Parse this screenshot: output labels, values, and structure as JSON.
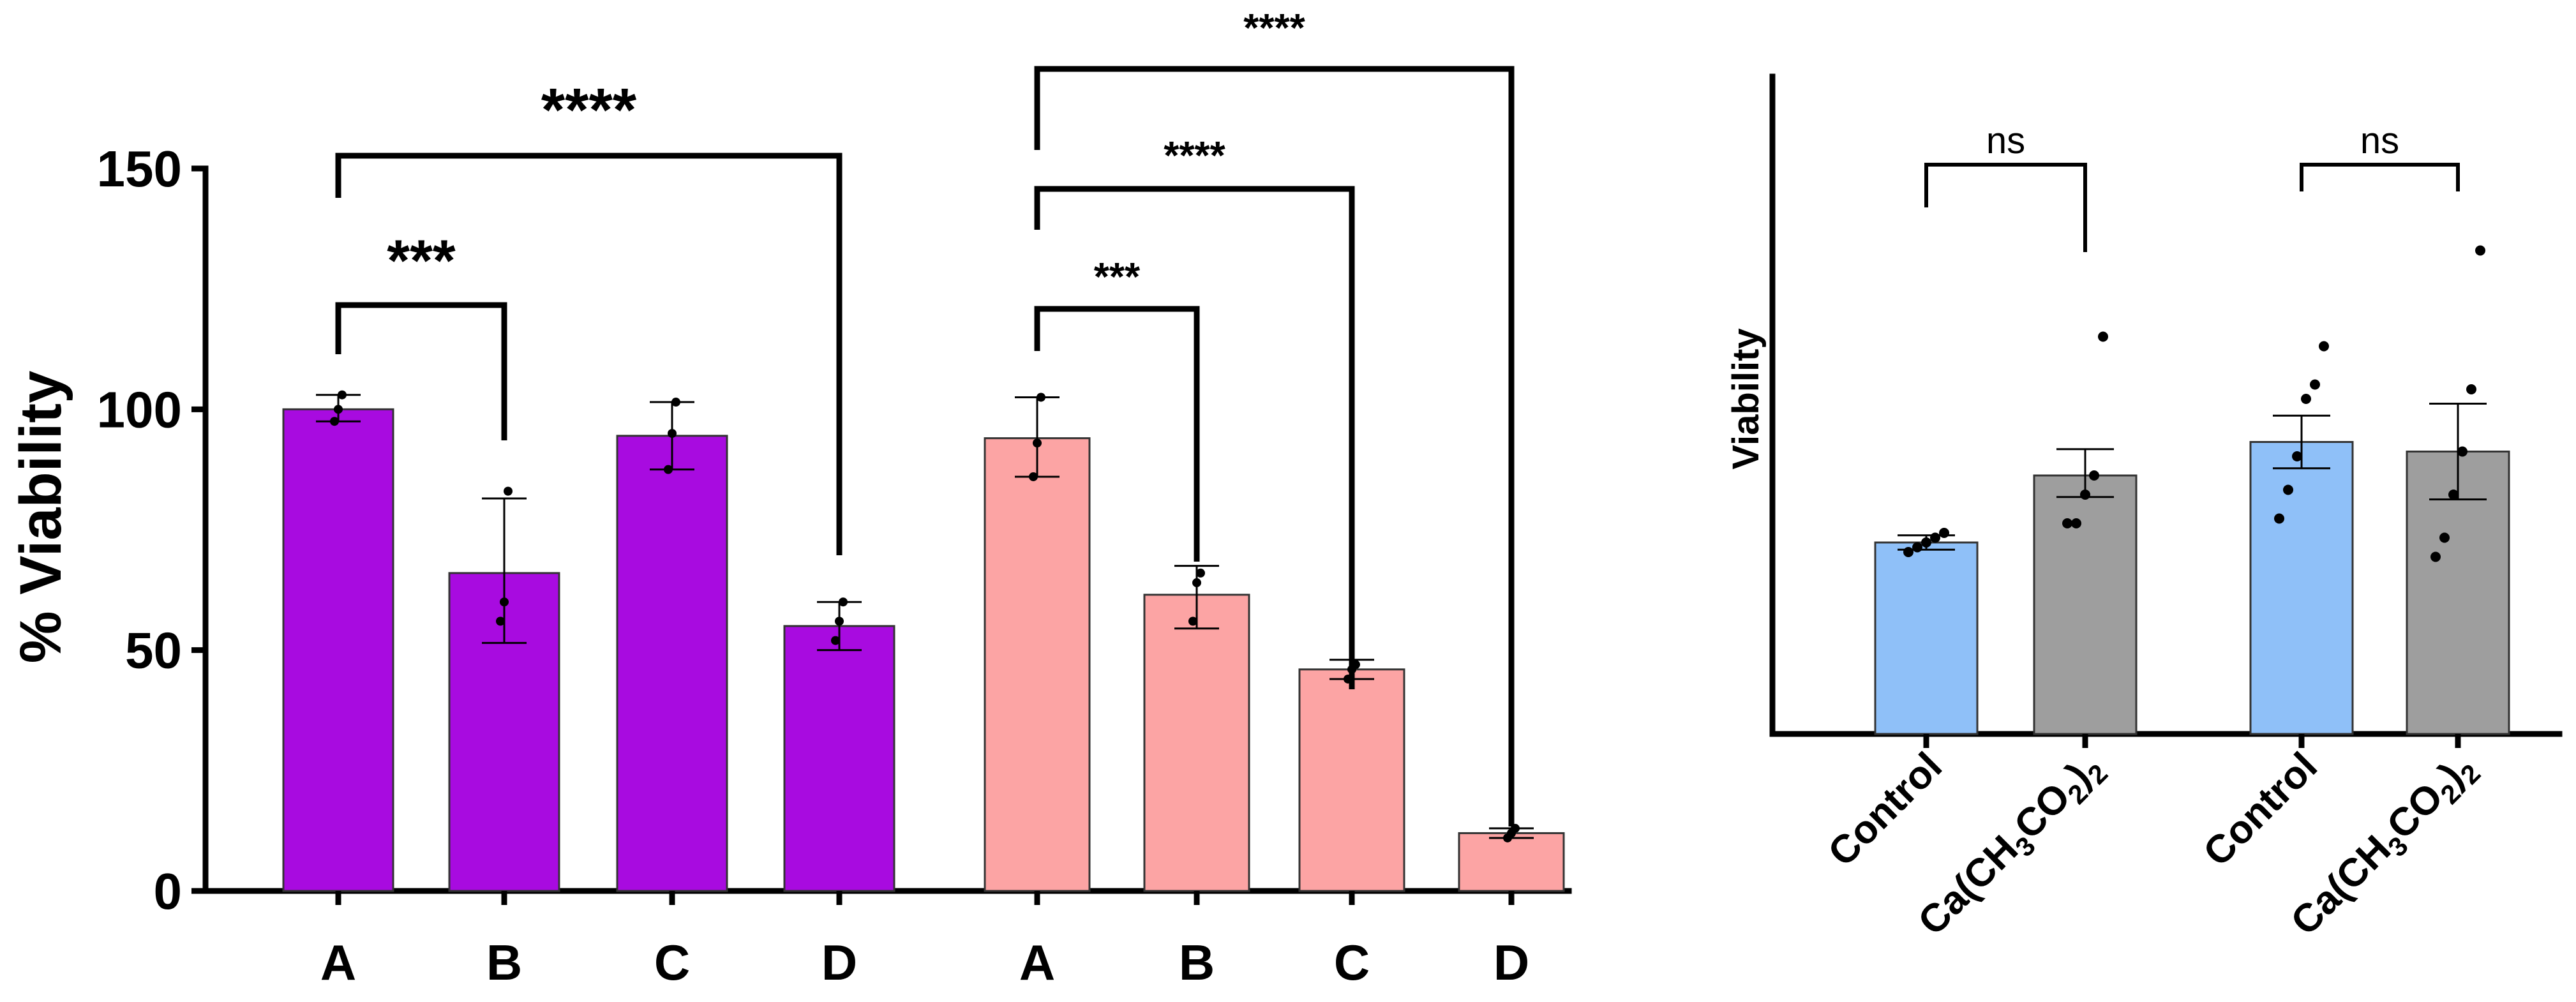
{
  "chart_data": [
    {
      "type": "bar",
      "title": "",
      "xlabel": "",
      "ylabel": "% Viability",
      "ylim": [
        0,
        150
      ],
      "yticks": [
        "0",
        "50",
        "100",
        "150"
      ],
      "grid": false,
      "groups": [
        {
          "name": "group-1",
          "color": "#a80be0",
          "categories": [
            "A",
            "B",
            "C",
            "D"
          ],
          "values": [
            100,
            66,
            94.5,
            55
          ],
          "errors": [
            [
              97.5,
              103
            ],
            [
              51.5,
              81.5
            ],
            [
              87.5,
              101.5
            ],
            [
              50,
              60
            ]
          ],
          "points": [
            [
              97.5,
              100,
              103
            ],
            [
              56,
              60,
              83
            ],
            [
              87.5,
              95,
              101.5
            ],
            [
              52,
              56,
              60
            ]
          ]
        },
        {
          "name": "group-2",
          "color": "#fca4a4",
          "categories": [
            "A",
            "B",
            "C",
            "D"
          ],
          "values": [
            94,
            61.5,
            46,
            12
          ],
          "errors": [
            [
              86,
              102.5
            ],
            [
              54.5,
              67.5
            ],
            [
              44,
              48
            ],
            [
              11,
              13
            ]
          ],
          "points": [
            [
              86,
              93,
              102.5
            ],
            [
              56,
              64,
              66
            ],
            [
              44,
              46,
              47
            ],
            [
              11,
              12,
              13
            ]
          ]
        }
      ],
      "comparisons": [
        {
          "from": "group-1.A",
          "to": "group-1.D",
          "label": "****"
        },
        {
          "from": "group-1.A",
          "to": "group-1.B",
          "label": "***"
        },
        {
          "from": "group-2.A",
          "to": "group-2.D",
          "label": "****"
        },
        {
          "from": "group-2.A",
          "to": "group-2.C",
          "label": "****"
        },
        {
          "from": "group-2.A",
          "to": "group-2.B",
          "label": "***"
        }
      ]
    },
    {
      "type": "bar",
      "title": "",
      "xlabel": "",
      "ylabel": "Viability",
      "ylim": [
        0,
        1.2
      ],
      "yticks": [],
      "grid": false,
      "groups": [
        {
          "name": "pair-1",
          "categories": [
            "Control",
            "Ca(CH3CO2)2"
          ],
          "colors": [
            "#8fc0f8",
            "#9e9e9e"
          ],
          "values": [
            0.4,
            0.54
          ],
          "errors": [
            [
              0.385,
              0.415
            ],
            [
              0.495,
              0.595
            ]
          ],
          "points": [
            [
              0.38,
              0.39,
              0.4,
              0.41,
              0.42
            ],
            [
              0.44,
              0.44,
              0.5,
              0.54,
              0.83
            ]
          ]
        },
        {
          "name": "pair-2",
          "categories": [
            "Control",
            "Ca(CH3CO2)2"
          ],
          "colors": [
            "#8fc0f8",
            "#9e9e9e"
          ],
          "values": [
            0.61,
            0.59
          ],
          "errors": [
            [
              0.555,
              0.665
            ],
            [
              0.49,
              0.69
            ]
          ],
          "points": [
            [
              0.45,
              0.51,
              0.58,
              0.7,
              0.73,
              0.81
            ],
            [
              0.37,
              0.41,
              0.5,
              0.59,
              0.72,
              1.01
            ]
          ]
        }
      ],
      "comparisons": [
        {
          "from": "pair-1.Control",
          "to": "pair-1.Ca(CH3CO2)2",
          "label": "ns"
        },
        {
          "from": "pair-2.Control",
          "to": "pair-2.Ca(CH3CO2)2",
          "label": "ns"
        }
      ]
    }
  ]
}
